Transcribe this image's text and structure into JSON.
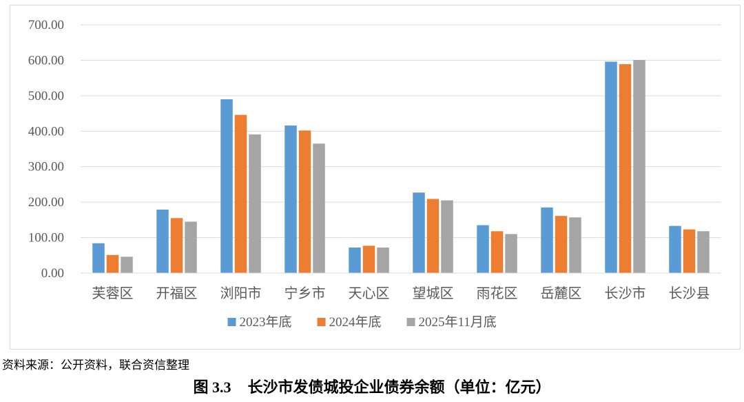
{
  "chart_data": {
    "type": "bar",
    "categories": [
      "芙蓉区",
      "开福区",
      "浏阳市",
      "宁乡市",
      "天心区",
      "望城区",
      "雨花区",
      "岳麓区",
      "长沙市",
      "长沙县"
    ],
    "series": [
      {
        "name": "2023年底",
        "color": "#5b9bd5",
        "values": [
          84,
          179,
          490,
          416,
          72,
          227,
          135,
          185,
          596,
          133
        ]
      },
      {
        "name": "2024年底",
        "color": "#ed7d31",
        "values": [
          51,
          155,
          446,
          402,
          77,
          209,
          118,
          161,
          589,
          123
        ]
      },
      {
        "name": "2025年11月底",
        "color": "#a5a5a5",
        "values": [
          46,
          145,
          391,
          365,
          72,
          205,
          110,
          157,
          601,
          118
        ]
      }
    ],
    "ylim": [
      0,
      700
    ],
    "yticks": [
      "0.00",
      "100.00",
      "200.00",
      "300.00",
      "400.00",
      "500.00",
      "600.00",
      "700.00"
    ],
    "grid": true,
    "legend_position": "bottom"
  },
  "source_note": "资料来源：公开资料，联合资信整理",
  "caption": {
    "number": "图 3.3",
    "title": "长沙市发债城投企业债券余额（单位：亿元）"
  }
}
